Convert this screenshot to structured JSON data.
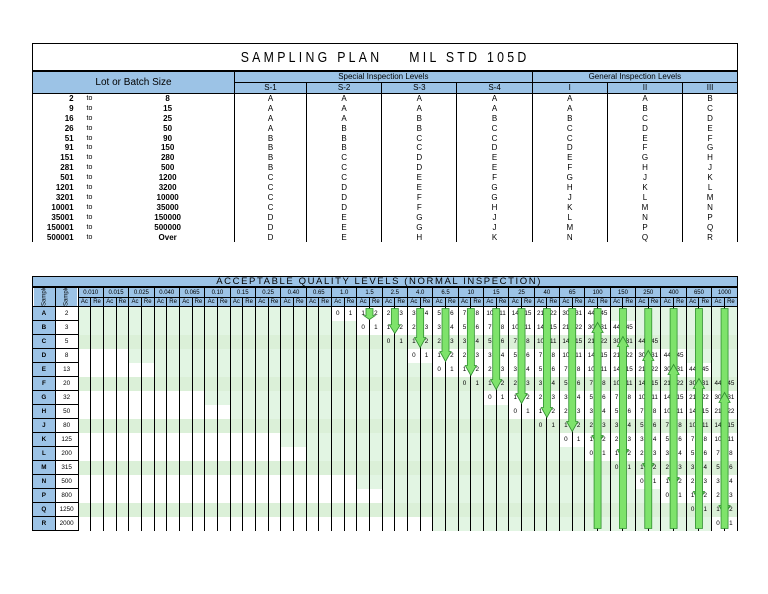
{
  "title": "SAMPLING PLAN    MIL STD 105D",
  "top_table": {
    "lot_header": "Lot or Batch Size",
    "special_header": "Special Inspection Levels",
    "general_header": "General Inspection Levels",
    "level_labels": [
      "S-1",
      "S-2",
      "S-3",
      "S-4",
      "I",
      "II",
      "III"
    ],
    "rows": [
      {
        "from": "2",
        "to": "to",
        "upto": "8",
        "codes": [
          "A",
          "A",
          "A",
          "A",
          "A",
          "A",
          "B"
        ]
      },
      {
        "from": "9",
        "to": "to",
        "upto": "15",
        "codes": [
          "A",
          "A",
          "A",
          "A",
          "A",
          "B",
          "C"
        ]
      },
      {
        "from": "16",
        "to": "to",
        "upto": "25",
        "codes": [
          "A",
          "A",
          "B",
          "B",
          "B",
          "C",
          "D"
        ]
      },
      {
        "from": "26",
        "to": "to",
        "upto": "50",
        "codes": [
          "A",
          "B",
          "B",
          "C",
          "C",
          "D",
          "E"
        ]
      },
      {
        "from": "51",
        "to": "to",
        "upto": "90",
        "codes": [
          "B",
          "B",
          "C",
          "C",
          "C",
          "E",
          "F"
        ]
      },
      {
        "from": "91",
        "to": "to",
        "upto": "150",
        "codes": [
          "B",
          "B",
          "C",
          "D",
          "D",
          "F",
          "G"
        ]
      },
      {
        "from": "151",
        "to": "to",
        "upto": "280",
        "codes": [
          "B",
          "C",
          "D",
          "E",
          "E",
          "G",
          "H"
        ]
      },
      {
        "from": "281",
        "to": "to",
        "upto": "500",
        "codes": [
          "B",
          "C",
          "D",
          "E",
          "F",
          "H",
          "J"
        ]
      },
      {
        "from": "501",
        "to": "to",
        "upto": "1200",
        "codes": [
          "C",
          "C",
          "E",
          "F",
          "G",
          "J",
          "K"
        ]
      },
      {
        "from": "1201",
        "to": "to",
        "upto": "3200",
        "codes": [
          "C",
          "D",
          "E",
          "G",
          "H",
          "K",
          "L"
        ]
      },
      {
        "from": "3201",
        "to": "to",
        "upto": "10000",
        "codes": [
          "C",
          "D",
          "F",
          "G",
          "J",
          "L",
          "M"
        ]
      },
      {
        "from": "10001",
        "to": "to",
        "upto": "35000",
        "codes": [
          "C",
          "D",
          "F",
          "H",
          "K",
          "M",
          "N"
        ]
      },
      {
        "from": "35001",
        "to": "to",
        "upto": "150000",
        "codes": [
          "D",
          "E",
          "G",
          "J",
          "L",
          "N",
          "P"
        ]
      },
      {
        "from": "150001",
        "to": "to",
        "upto": "500000",
        "codes": [
          "D",
          "E",
          "G",
          "J",
          "M",
          "P",
          "Q"
        ]
      },
      {
        "from": "500001",
        "to": "to",
        "upto": "Over",
        "codes": [
          "D",
          "E",
          "H",
          "K",
          "N",
          "Q",
          "R"
        ]
      }
    ]
  },
  "aql_table": {
    "title": "ACCEPTABLE QUALITY LEVELS (NORMAL INSPECTION)",
    "side_headers": [
      "Sample Size Code Letter",
      "Sample Size"
    ],
    "aql_levels": [
      "0.010",
      "0.015",
      "0.025",
      "0.040",
      "0.065",
      "0.10",
      "0.15",
      "0.25",
      "0.40",
      "0.65",
      "1.0",
      "1.5",
      "2.5",
      "4.0",
      "6.5",
      "10",
      "15",
      "25",
      "40",
      "65",
      "100",
      "150",
      "250",
      "400",
      "650",
      "1000"
    ],
    "ac_label": "Ac",
    "re_label": "Re",
    "rows": [
      {
        "letter": "A",
        "size": "2"
      },
      {
        "letter": "B",
        "size": "3"
      },
      {
        "letter": "C",
        "size": "5"
      },
      {
        "letter": "D",
        "size": "8"
      },
      {
        "letter": "E",
        "size": "13"
      },
      {
        "letter": "F",
        "size": "20"
      },
      {
        "letter": "G",
        "size": "32"
      },
      {
        "letter": "H",
        "size": "50"
      },
      {
        "letter": "J",
        "size": "80"
      },
      {
        "letter": "K",
        "size": "125"
      },
      {
        "letter": "L",
        "size": "200"
      },
      {
        "letter": "M",
        "size": "315"
      },
      {
        "letter": "N",
        "size": "500"
      },
      {
        "letter": "P",
        "size": "800"
      },
      {
        "letter": "Q",
        "size": "1250"
      },
      {
        "letter": "R",
        "size": "2000"
      }
    ],
    "ac_re_pairs": [
      [
        "0",
        "1"
      ],
      [
        "1",
        "2"
      ],
      [
        "2",
        "3"
      ],
      [
        "3",
        "4"
      ],
      [
        "5",
        "6"
      ],
      [
        "7",
        "8"
      ],
      [
        "10",
        "11"
      ],
      [
        "14",
        "15"
      ],
      [
        "21",
        "22"
      ],
      [
        "30",
        "31"
      ],
      [
        "44",
        "45"
      ]
    ],
    "diagonal_start_column": {
      "A": 11,
      "B": 12,
      "C": 13,
      "D": 14,
      "E": 15,
      "F": 16,
      "G": 17,
      "H": 18,
      "J": 19,
      "K": 20,
      "L": 21,
      "M": 22,
      "N": 23,
      "P": 24,
      "Q": 25,
      "R": 26
    }
  },
  "colors": {
    "header_blue": "#9cc3e6",
    "arrow_green": "#7ee36b",
    "cell_green": "#c6efce"
  }
}
